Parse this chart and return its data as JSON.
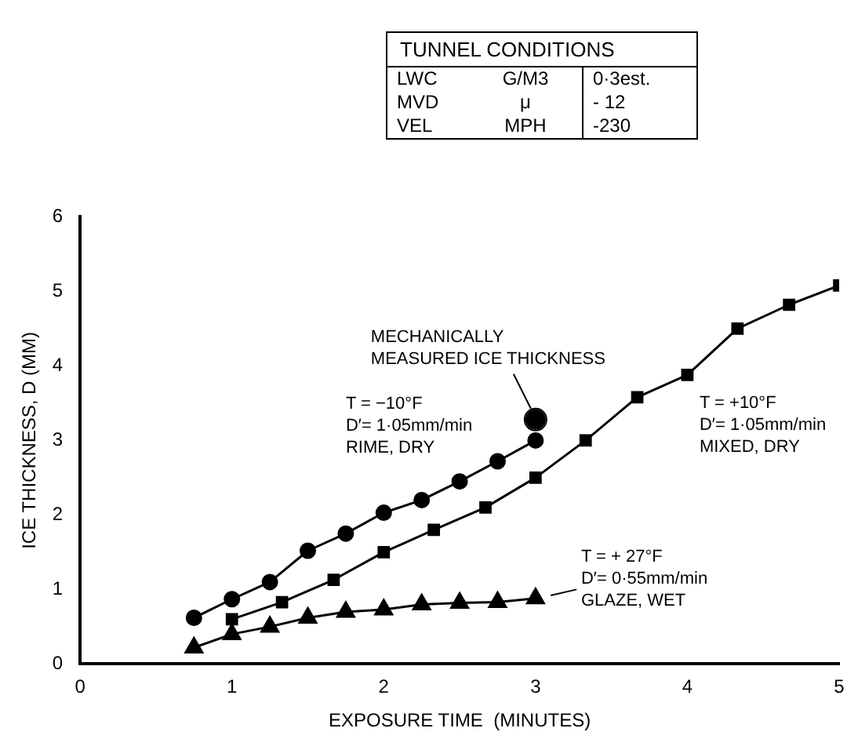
{
  "chart_data": [
    {
      "type": "other",
      "title": "TUNNEL CONDITIONS",
      "annotations": [
        "LWC",
        "G/M3",
        "0·3est.",
        "MVD",
        "μ",
        "- 12",
        "VEL",
        "MPH",
        "-230"
      ]
    },
    {
      "type": "line",
      "xlabel": "EXPOSURE TIME  (MINUTES)",
      "ylabel": "ICE THICKNESS, D (MM)",
      "xlim": [
        0,
        5
      ],
      "xticks": [
        0,
        1,
        2,
        3,
        4,
        5
      ],
      "ylim": [
        0,
        6
      ],
      "yticks": [
        0,
        1,
        2,
        3,
        4,
        5,
        6
      ],
      "grid": false,
      "legend": false,
      "annotations": [
        {
          "text": "MECHANICALLY MEASURED ICE THICKNESS",
          "x": 3,
          "y": 3.28
        }
      ],
      "series": [
        {
          "name": "T = −10°F\nD′= 1·05mm/min\nRIME, DRY",
          "color": "#000000",
          "marker": "circle",
          "x": [
            0.75,
            1,
            1.25,
            1.5,
            1.75,
            2,
            2.25,
            2.5,
            2.75,
            3
          ],
          "values": [
            0.62,
            0.87,
            1.1,
            1.52,
            1.75,
            2.03,
            2.2,
            2.45,
            2.72,
            3.0
          ]
        },
        {
          "name": "T = +10°F\nD′= 1·05mm/min\nMIXED, DRY",
          "color": "#000000",
          "marker": "square",
          "x": [
            1,
            1.33,
            1.67,
            2,
            2.33,
            2.67,
            3,
            3.33,
            3.67,
            4,
            4.33,
            4.67,
            5
          ],
          "values": [
            0.6,
            0.83,
            1.13,
            1.5,
            1.8,
            2.1,
            2.5,
            3.0,
            3.58,
            3.88,
            4.5,
            4.82,
            5.08
          ]
        },
        {
          "name": "T = + 27°F\nD′= 0·55mm/min\nGLAZE, WET",
          "color": "#000000",
          "marker": "triangle",
          "x": [
            0.75,
            1,
            1.25,
            1.5,
            1.75,
            2,
            2.25,
            2.5,
            2.75,
            3
          ],
          "values": [
            0.22,
            0.4,
            0.5,
            0.62,
            0.7,
            0.73,
            0.8,
            0.82,
            0.83,
            0.88
          ]
        },
        {
          "type": "scatter",
          "color": "#000000",
          "marker": "circle",
          "x": [
            3
          ],
          "values": [
            3.28
          ]
        }
      ]
    }
  ]
}
